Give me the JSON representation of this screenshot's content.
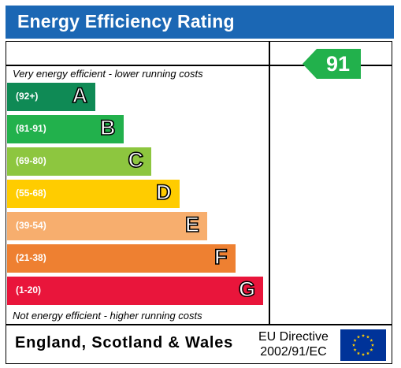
{
  "header": {
    "title": "Energy Efficiency Rating"
  },
  "notes": {
    "top": "Very energy efficient - lower running costs",
    "bottom": "Not energy efficient - higher running costs"
  },
  "chart_data": {
    "type": "bar",
    "title": "Energy Efficiency Rating",
    "categories": [
      "A",
      "B",
      "C",
      "D",
      "E",
      "F",
      "G"
    ],
    "ranges": [
      "(92+)",
      "(81-91)",
      "(69-80)",
      "(55-68)",
      "(39-54)",
      "(21-38)",
      "(1-20)"
    ],
    "colors": [
      "#0f8a55",
      "#22b14c",
      "#8dc63f",
      "#ffcc00",
      "#f7ae6e",
      "#ee8031",
      "#e9153b"
    ],
    "current": {
      "label": "91",
      "band": "B",
      "color": "#22b14c"
    }
  },
  "footer": {
    "region": "England, Scotland & Wales",
    "directive_line1": "EU Directive",
    "directive_line2": "2002/91/EC"
  },
  "icons": {
    "flag": "eu-flag-icon"
  }
}
